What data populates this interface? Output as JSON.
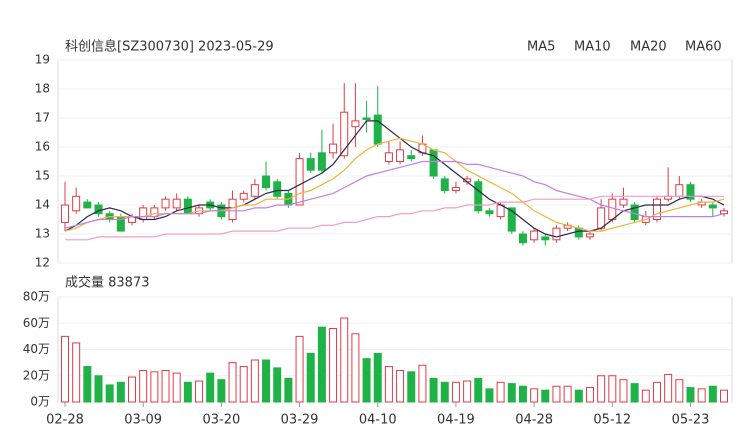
{
  "chart_data": [
    {
      "type": "candlestick",
      "title": "科创信息[SZ300730] 2023-05-29",
      "open": [
        13.4,
        13.8,
        14.1,
        14.0,
        13.7,
        13.6,
        13.4,
        13.5,
        13.6,
        13.9,
        13.9,
        14.2,
        13.7,
        14.1,
        14.0,
        13.5,
        14.2,
        14.3,
        15.0,
        14.8,
        14.4,
        14.0,
        15.6,
        15.8,
        15.8,
        15.7,
        16.7,
        17.0,
        17.1,
        15.5,
        15.5,
        15.7,
        15.8,
        15.9,
        14.9,
        14.5,
        14.8,
        14.8,
        13.8,
        13.6,
        13.9,
        13.0,
        12.8,
        12.9,
        12.8,
        13.2,
        13.2,
        12.9,
        13.2,
        13.5,
        14.0,
        14.0,
        13.4,
        13.5,
        14.2,
        14.3,
        14.7,
        14.0,
        14.0,
        13.7
      ],
      "high": [
        14.8,
        14.6,
        14.2,
        14.1,
        13.8,
        13.7,
        13.7,
        14.0,
        14.0,
        14.3,
        14.4,
        14.3,
        14.0,
        14.2,
        14.1,
        14.5,
        14.5,
        14.9,
        15.5,
        14.9,
        14.5,
        15.8,
        15.8,
        16.6,
        16.8,
        18.2,
        18.2,
        17.6,
        18.1,
        16.2,
        16.2,
        15.9,
        16.4,
        15.9,
        15.0,
        14.8,
        15.0,
        14.9,
        13.9,
        14.1,
        13.9,
        13.1,
        13.2,
        13.0,
        13.3,
        13.4,
        13.3,
        13.1,
        14.2,
        14.4,
        14.6,
        14.1,
        13.8,
        14.3,
        15.3,
        15.0,
        14.8,
        14.2,
        14.1,
        13.9
      ],
      "low": [
        13.1,
        13.7,
        13.9,
        13.6,
        13.4,
        13.1,
        13.3,
        13.4,
        13.5,
        13.8,
        13.8,
        13.7,
        13.6,
        13.8,
        13.5,
        13.4,
        14.1,
        14.2,
        14.5,
        14.2,
        13.9,
        14.0,
        15.1,
        15.1,
        15.6,
        15.6,
        16.0,
        16.5,
        16.0,
        15.4,
        15.4,
        15.5,
        15.7,
        14.9,
        14.4,
        14.4,
        14.7,
        13.7,
        13.6,
        13.5,
        13.0,
        12.6,
        12.7,
        12.6,
        12.7,
        13.1,
        12.8,
        12.8,
        13.1,
        13.4,
        13.9,
        13.4,
        13.3,
        13.4,
        14.1,
        14.2,
        14.1,
        13.9,
        13.6,
        13.6
      ],
      "close": [
        14.0,
        14.3,
        13.9,
        13.7,
        13.5,
        13.1,
        13.6,
        13.9,
        13.9,
        14.2,
        14.2,
        13.7,
        13.9,
        13.9,
        13.6,
        14.2,
        14.4,
        14.7,
        14.6,
        14.3,
        14.0,
        15.6,
        15.2,
        15.2,
        16.1,
        17.2,
        16.9,
        16.95,
        16.1,
        15.8,
        15.9,
        15.6,
        16.1,
        15.0,
        14.5,
        14.6,
        14.9,
        13.8,
        13.7,
        14.0,
        13.1,
        12.7,
        13.1,
        12.8,
        13.2,
        13.3,
        12.9,
        13.0,
        13.9,
        14.2,
        14.2,
        13.5,
        13.6,
        14.2,
        14.3,
        14.7,
        14.2,
        14.1,
        13.9,
        13.8
      ],
      "series": [
        {
          "name": "MA5",
          "color": "#2a2a4a",
          "values": [
            13.1,
            13.3,
            13.6,
            13.8,
            13.9,
            13.8,
            13.6,
            13.5,
            13.5,
            13.6,
            13.8,
            13.9,
            14.0,
            14.0,
            13.9,
            13.9,
            14.0,
            14.2,
            14.4,
            14.5,
            14.5,
            14.7,
            14.9,
            15.1,
            15.4,
            15.9,
            16.4,
            16.9,
            16.9,
            16.6,
            16.3,
            16.0,
            15.8,
            15.7,
            15.4,
            15.1,
            14.8,
            14.5,
            14.2,
            14.0,
            13.8,
            13.5,
            13.2,
            13.0,
            12.9,
            13.0,
            13.1,
            13.1,
            13.2,
            13.5,
            13.8,
            13.9,
            14.0,
            14.0,
            14.0,
            14.2,
            14.3,
            14.3,
            14.2,
            14.0
          ]
        },
        {
          "name": "MA10",
          "color": "#f0b43c",
          "values": [
            13.1,
            13.2,
            13.4,
            13.5,
            13.6,
            13.6,
            13.6,
            13.6,
            13.7,
            13.7,
            13.7,
            13.7,
            13.8,
            13.8,
            13.8,
            13.9,
            14.0,
            14.0,
            14.2,
            14.2,
            14.2,
            14.4,
            14.5,
            14.7,
            14.9,
            15.2,
            15.6,
            15.9,
            16.1,
            16.2,
            16.3,
            16.2,
            16.1,
            15.9,
            15.8,
            15.5,
            15.2,
            15.0,
            14.8,
            14.6,
            14.4,
            14.1,
            13.8,
            13.6,
            13.4,
            13.3,
            13.2,
            13.1,
            13.1,
            13.2,
            13.3,
            13.4,
            13.5,
            13.7,
            13.8,
            13.9,
            14.0,
            14.1,
            14.1,
            14.2
          ]
        },
        {
          "name": "MA20",
          "color": "#c080e0",
          "values": [
            13.2,
            13.3,
            13.4,
            13.5,
            13.5,
            13.5,
            13.6,
            13.6,
            13.6,
            13.7,
            13.7,
            13.7,
            13.7,
            13.8,
            13.8,
            13.8,
            13.8,
            13.9,
            13.9,
            14.0,
            14.0,
            14.1,
            14.2,
            14.3,
            14.4,
            14.6,
            14.8,
            15.0,
            15.1,
            15.2,
            15.3,
            15.4,
            15.5,
            15.5,
            15.5,
            15.5,
            15.4,
            15.4,
            15.3,
            15.2,
            15.1,
            15.0,
            14.8,
            14.7,
            14.5,
            14.4,
            14.3,
            14.2,
            14.0,
            13.9,
            13.8,
            13.7,
            13.6,
            13.6,
            13.6,
            13.6,
            13.6,
            13.6,
            13.6,
            13.7
          ]
        },
        {
          "name": "MA60",
          "color": "#f09cc8",
          "values": [
            12.8,
            12.8,
            12.8,
            12.9,
            12.9,
            12.9,
            12.9,
            12.9,
            12.9,
            13.0,
            13.0,
            13.0,
            13.0,
            13.0,
            13.0,
            13.1,
            13.1,
            13.1,
            13.1,
            13.1,
            13.2,
            13.2,
            13.2,
            13.3,
            13.3,
            13.4,
            13.4,
            13.5,
            13.6,
            13.6,
            13.7,
            13.7,
            13.8,
            13.8,
            13.9,
            13.9,
            14.0,
            14.0,
            14.0,
            14.1,
            14.1,
            14.1,
            14.2,
            14.2,
            14.2,
            14.2,
            14.2,
            14.2,
            14.3,
            14.3,
            14.3,
            14.3,
            14.3,
            14.3,
            14.3,
            14.3,
            14.3,
            14.3,
            14.3,
            14.3
          ]
        }
      ],
      "up_color": "#e03c46",
      "down_color": "#1fb347",
      "ylim": [
        12,
        19
      ],
      "yticks": [
        12,
        13,
        14,
        15,
        16,
        17,
        18,
        19
      ],
      "grid": true
    },
    {
      "type": "bar",
      "title": "成交量 83873",
      "categories": [
        "02-28",
        null,
        null,
        null,
        null,
        null,
        null,
        "03-09",
        null,
        null,
        null,
        null,
        null,
        null,
        "03-20",
        null,
        null,
        null,
        null,
        null,
        null,
        "03-29",
        null,
        null,
        null,
        null,
        null,
        null,
        "04-10",
        null,
        null,
        null,
        null,
        null,
        null,
        "04-19",
        null,
        null,
        null,
        null,
        null,
        null,
        "04-28",
        null,
        null,
        null,
        null,
        null,
        null,
        "05-12",
        null,
        null,
        null,
        null,
        null,
        null,
        "05-23",
        null,
        null,
        null
      ],
      "values": [
        50,
        45,
        27,
        20,
        13,
        15,
        19,
        24,
        23,
        24,
        22,
        15,
        16,
        22,
        17,
        30,
        27,
        32,
        32,
        26,
        18,
        50,
        37,
        57,
        56,
        64,
        52,
        33,
        37,
        27,
        24,
        23,
        28,
        18,
        15,
        15,
        16,
        18,
        10,
        15,
        14,
        12,
        10,
        9,
        12,
        12,
        9,
        11,
        20,
        20,
        17,
        14,
        9,
        15,
        21,
        17,
        11,
        10,
        12,
        9
      ],
      "ylim": [
        0,
        80
      ],
      "yticks": [
        {
          "value": 0,
          "label": "0万"
        },
        {
          "value": 20,
          "label": "20万"
        },
        {
          "value": 40,
          "label": "40万"
        },
        {
          "value": 60,
          "label": "60万"
        },
        {
          "value": 80,
          "label": "80万"
        }
      ],
      "grid": true
    }
  ]
}
